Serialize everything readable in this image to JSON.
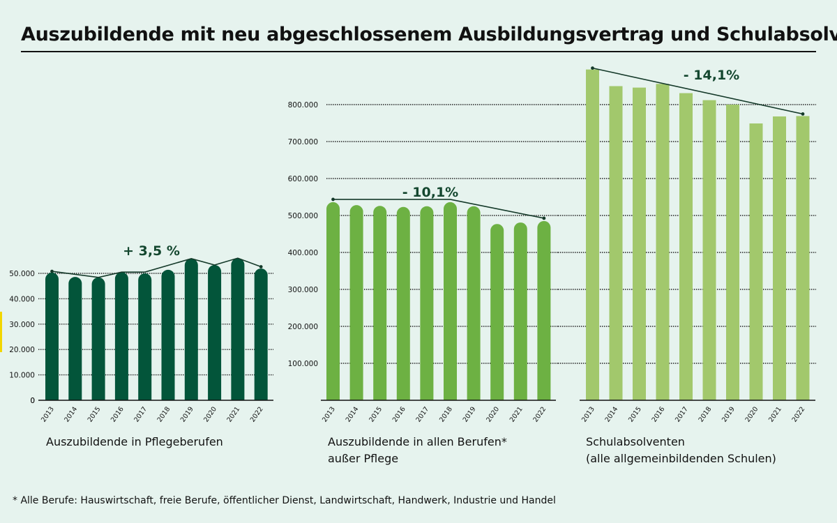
{
  "title": "Auszubildende mit neu abgeschlossenem Ausbildungsvertrag und Schulabsolventen",
  "footnote": "* Alle Berufe: Hauswirtschaft, freie Berufe, öffentlicher Dienst, Landwirtschaft, Handwerk, Industrie und Handel",
  "colors": {
    "background": "#e6f3ee",
    "accent": "#f2d600",
    "chart1_bar": "#03553a",
    "chart2_bar": "#6db143",
    "chart3_bar": "#a2c86c",
    "trend_line": "#153a2a",
    "trend_text": "#14472f"
  },
  "captions": [
    {
      "line1": "Auszubildende in Pflegeberufen",
      "line2": ""
    },
    {
      "line1": "Auszubildende in allen Berufen*",
      "line2": "außer Pflege"
    },
    {
      "line1": "Schulabsolventen",
      "line2": "(alle allgemeinbildenden Schulen)"
    }
  ],
  "chart_data": [
    {
      "type": "bar",
      "title": "Auszubildende in Pflegeberufen",
      "categories": [
        "2013",
        "2014",
        "2015",
        "2016",
        "2017",
        "2018",
        "2019",
        "2020",
        "2021",
        "2022"
      ],
      "values": [
        50300,
        48600,
        48400,
        50500,
        50000,
        51400,
        55800,
        53300,
        56000,
        51900
      ],
      "trend_points": [
        50800,
        48400,
        50500,
        50500,
        55800,
        53300,
        56000,
        52600
      ],
      "trend_label": "+ 3,5 %",
      "ylim": [
        0,
        60000
      ],
      "yticks": [
        0,
        10000,
        20000,
        30000,
        40000,
        50000
      ],
      "ytick_labels": [
        "0",
        "10.000",
        "20.000",
        "30.000",
        "40.000",
        "50.000"
      ],
      "xlabel": "",
      "ylabel": "",
      "grid": true,
      "bar_style": "rounded"
    },
    {
      "type": "bar",
      "title": "Auszubildende in allen Berufen* außer Pflege",
      "categories": [
        "2013",
        "2014",
        "2015",
        "2016",
        "2017",
        "2018",
        "2019",
        "2020",
        "2021",
        "2022"
      ],
      "values": [
        536000,
        528000,
        526000,
        523000,
        525000,
        536000,
        525000,
        477000,
        481000,
        485000
      ],
      "trend_label": "- 10,1%",
      "ylim": [
        0,
        900000
      ],
      "yticks": [
        100000,
        200000,
        300000,
        400000,
        500000,
        600000,
        700000,
        800000
      ],
      "ytick_labels": [
        "100.000",
        "200.000",
        "300.000",
        "400.000",
        "500.000",
        "600.000",
        "700.000",
        "800.000"
      ],
      "xlabel": "",
      "ylabel": "",
      "grid": true,
      "bar_style": "rounded"
    },
    {
      "type": "bar",
      "title": "Schulabsolventen (alle allgemeinbildenden Schulen)",
      "categories": [
        "2013",
        "2014",
        "2015",
        "2016",
        "2017",
        "2018",
        "2019",
        "2020",
        "2021",
        "2022"
      ],
      "values": [
        895000,
        850000,
        846000,
        856000,
        831000,
        812000,
        800000,
        749000,
        768000,
        769000
      ],
      "trend_label": "- 14,1%",
      "ylim": [
        0,
        900000
      ],
      "yticks": [
        100000,
        200000,
        300000,
        400000,
        500000,
        600000,
        700000,
        800000
      ],
      "ytick_labels": [],
      "xlabel": "",
      "ylabel": "",
      "grid": true,
      "bar_style": "flat"
    }
  ]
}
